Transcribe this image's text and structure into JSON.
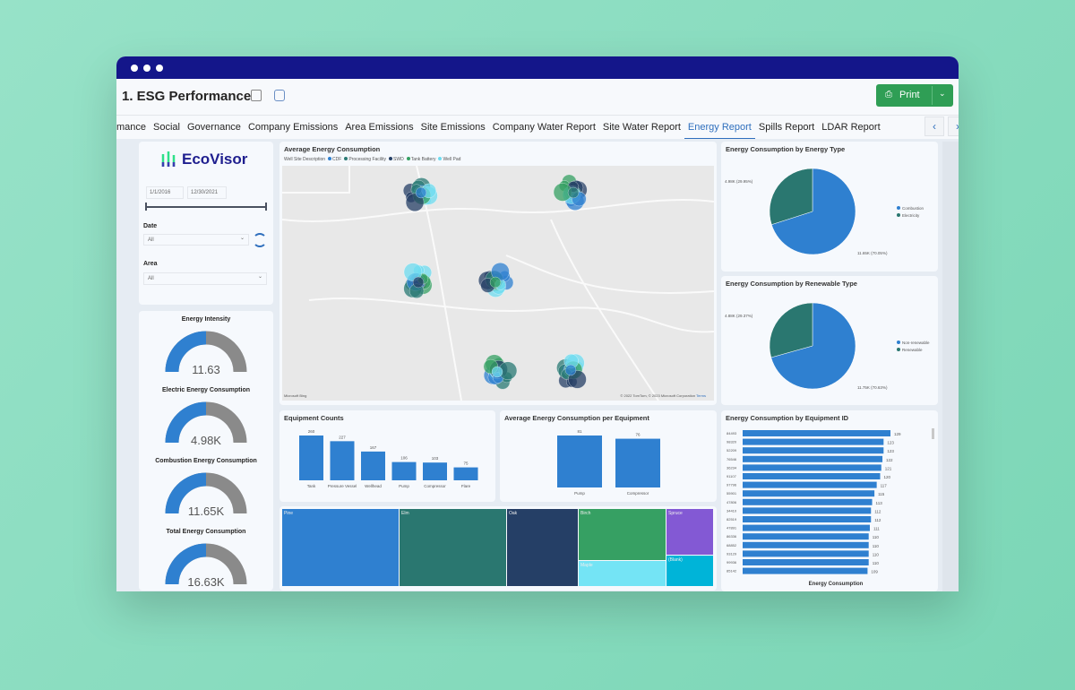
{
  "app": {
    "title": "1. ESG Performance",
    "print_label": "Print"
  },
  "tabs": [
    "mance",
    "Social",
    "Governance",
    "Company Emissions",
    "Area Emissions",
    "Site Emissions",
    "Company Water Report",
    "Site Water Report",
    "Energy Report",
    "Spills Report",
    "LDAR Report"
  ],
  "active_tab": "Energy Report",
  "tab_nav": {
    "prev": "‹",
    "next": "›"
  },
  "filters": {
    "brand": "EcoVisor",
    "start_date": "1/1/2016",
    "end_date": "12/30/2021",
    "date_label": "Date",
    "date_value": "All",
    "area_label": "Area",
    "area_value": "All"
  },
  "gauges": [
    {
      "title": "Energy Intensity",
      "value": "11.63",
      "fill": 0.5
    },
    {
      "title": "Electric Energy Consumption",
      "value": "4.98K",
      "fill": 0.5
    },
    {
      "title": "Combustion Energy Consumption",
      "value": "11.65K",
      "fill": 0.5
    },
    {
      "title": "Total Energy Consumption",
      "value": "16.63K",
      "fill": 0.5
    }
  ],
  "map": {
    "title": "Average Energy Consumption",
    "legend_title": "Well Site Description",
    "legend": [
      {
        "label": "CDF",
        "color": "#2f80d0"
      },
      {
        "label": "Processing Facility",
        "color": "#2a7a74"
      },
      {
        "label": "SWD",
        "color": "#253f66"
      },
      {
        "label": "Tank Battery",
        "color": "#36a063"
      },
      {
        "label": "Well Pad",
        "color": "#6fdcf0"
      }
    ],
    "attribution": "© 2022 TomTom, © 2023 Microsoft Corporation",
    "terms": "Terms",
    "logo": "Microsoft Bing"
  },
  "colors": {
    "blue": "#2f80d0",
    "teal": "#2a7770",
    "gray": "#8a8a8a"
  },
  "chart_data": [
    {
      "type": "pie",
      "title": "Energy Consumption by Energy Type",
      "slices": [
        {
          "label": "Combustion",
          "value": 11.65,
          "data_label": "11.65K (70.05%)",
          "color": "#2f80d0"
        },
        {
          "label": "Electricity",
          "value": 4.98,
          "data_label": "4.98K (29.95%)",
          "color": "#2a7770"
        }
      ]
    },
    {
      "type": "pie",
      "title": "Energy Consumption by Renewable Type",
      "slices": [
        {
          "label": "Non-renewable",
          "value": 11.75,
          "data_label": "11.75K (70.63%)",
          "color": "#2f80d0"
        },
        {
          "label": "Renewable",
          "value": 4.88,
          "data_label": "4.88K (29.37%)",
          "color": "#2a7770"
        }
      ]
    },
    {
      "type": "bar",
      "title": "Equipment Counts",
      "categories": [
        "Tank",
        "Pressure Vessel",
        "Wellhead",
        "Pump",
        "Compressor",
        "Flare"
      ],
      "values": [
        260,
        227,
        167,
        106,
        103,
        75
      ]
    },
    {
      "type": "bar",
      "title": "Average Energy Consumption per Equipment",
      "categories": [
        "Pump",
        "Compressor"
      ],
      "values": [
        81,
        76
      ]
    },
    {
      "type": "bar",
      "orientation": "horizontal",
      "title": "Energy Consumption by Equipment ID",
      "xlabel": "Energy Consumption",
      "categories": [
        "84493",
        "98320",
        "52209",
        "76546",
        "36234",
        "91107",
        "97796",
        "55901",
        "47806",
        "34410",
        "82519",
        "47891",
        "86336",
        "68852",
        "93129",
        "99936",
        "85142"
      ],
      "values": [
        129,
        123,
        123,
        122,
        121,
        120,
        117,
        115,
        113,
        112,
        112,
        111,
        110,
        110,
        110,
        110,
        109
      ]
    },
    {
      "type": "treemap",
      "categories": [
        "Pine",
        "Elm",
        "Oak",
        "Birch",
        "Maple",
        "Spruce",
        "(Blank)"
      ],
      "colors": [
        "#2f80d0",
        "#2a7770",
        "#253f66",
        "#36a063",
        "#74e4f5",
        "#8359d4",
        "#00b4d8"
      ]
    }
  ]
}
